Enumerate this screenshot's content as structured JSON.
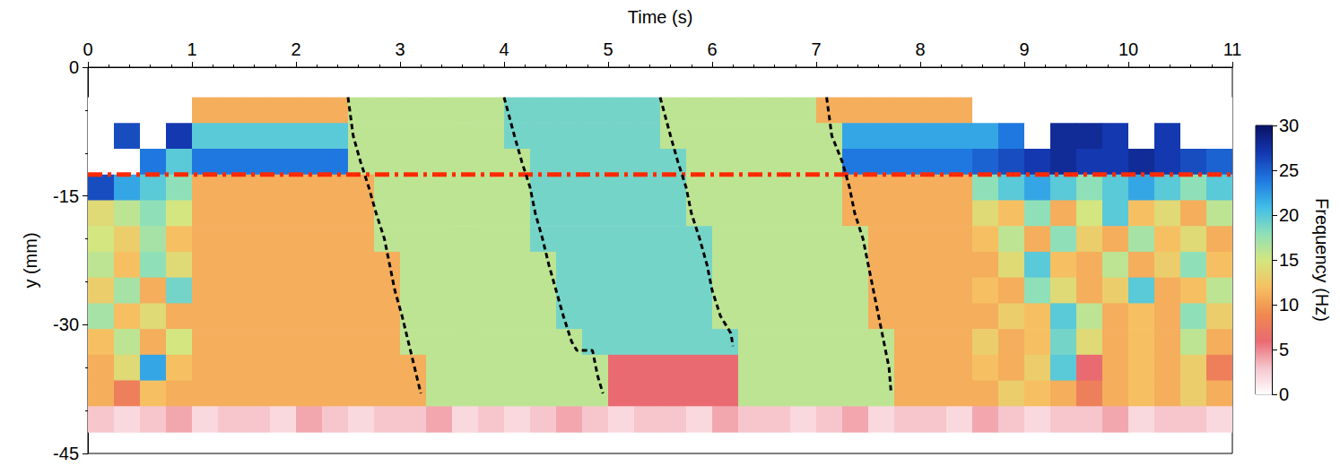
{
  "chart_data": {
    "type": "heatmap",
    "x_label": "Time (s)",
    "y_label": "y (mm)",
    "xlim": [
      0,
      11
    ],
    "xticks": [
      0,
      1,
      2,
      3,
      4,
      5,
      6,
      7,
      8,
      9,
      10,
      11
    ],
    "ylim": [
      -45,
      0
    ],
    "yticks": [
      -45,
      -30,
      -15,
      0
    ],
    "cells": {
      "x": [
        0.125,
        0.375,
        0.625,
        0.875,
        1.125,
        1.375,
        1.625,
        1.875,
        2.125,
        2.375,
        2.625,
        2.875,
        3.125,
        3.375,
        3.625,
        3.875,
        4.125,
        4.375,
        4.625,
        4.875,
        5.125,
        5.375,
        5.625,
        5.875,
        6.125,
        6.375,
        6.625,
        6.875,
        7.125,
        7.375,
        7.625,
        7.875,
        8.125,
        8.375,
        8.625,
        8.875,
        9.125,
        9.375,
        9.625,
        9.875,
        10.125,
        10.375,
        10.625,
        10.875
      ],
      "y": [
        -5,
        -8,
        -11,
        -14,
        -17,
        -20,
        -23,
        -26,
        -29,
        -32,
        -35,
        -38,
        -41
      ],
      "z": [
        [
          0,
          0,
          0,
          0,
          11,
          11,
          11,
          11,
          11,
          11,
          16,
          16,
          16,
          16,
          16,
          16,
          19,
          19,
          19,
          19,
          19,
          19,
          16,
          16,
          16,
          16,
          16,
          16,
          11,
          11,
          11,
          11,
          11,
          11,
          0,
          0,
          0,
          0,
          0,
          0,
          0,
          0,
          0,
          0
        ],
        [
          0,
          26,
          0,
          27,
          20,
          20,
          20,
          20,
          20,
          20,
          16,
          16,
          16,
          16,
          16,
          16,
          19,
          19,
          19,
          19,
          19,
          19,
          16,
          16,
          16,
          16,
          16,
          16,
          16,
          22,
          22,
          22,
          22,
          22,
          22,
          24,
          0,
          28,
          28,
          27,
          0,
          27,
          0,
          0
        ],
        [
          0,
          0,
          24,
          20,
          24,
          24,
          24,
          24,
          24,
          24,
          16,
          16,
          16,
          16,
          16,
          16,
          16,
          19,
          19,
          19,
          19,
          19,
          19,
          16,
          16,
          16,
          16,
          16,
          16,
          24,
          24,
          24,
          24,
          24,
          25,
          26,
          27,
          28,
          27,
          27,
          28,
          27,
          26,
          25
        ],
        [
          26,
          22,
          20,
          18,
          11,
          11,
          11,
          11,
          11,
          11,
          11,
          16,
          16,
          16,
          16,
          16,
          16,
          19,
          19,
          19,
          19,
          19,
          19,
          16,
          16,
          16,
          16,
          16,
          16,
          11,
          11,
          11,
          11,
          11,
          18,
          20,
          22,
          20,
          18,
          20,
          22,
          20,
          18,
          20
        ],
        [
          14,
          16,
          18,
          15,
          11,
          11,
          11,
          11,
          11,
          11,
          11,
          16,
          16,
          16,
          16,
          16,
          16,
          19,
          19,
          19,
          19,
          19,
          19,
          16,
          16,
          16,
          16,
          16,
          16,
          11,
          11,
          11,
          11,
          11,
          14,
          12,
          18,
          11,
          15,
          20,
          12,
          14,
          11,
          16
        ],
        [
          15,
          13,
          17,
          12,
          11,
          11,
          11,
          11,
          11,
          11,
          11,
          16,
          16,
          16,
          16,
          16,
          16,
          19,
          19,
          19,
          19,
          19,
          19,
          19,
          16,
          16,
          16,
          16,
          16,
          16,
          11,
          11,
          11,
          11,
          12,
          16,
          11,
          18,
          13,
          11,
          17,
          12,
          14,
          11
        ],
        [
          16,
          12,
          18,
          14,
          11,
          11,
          11,
          11,
          11,
          11,
          11,
          11,
          16,
          16,
          16,
          16,
          16,
          16,
          19,
          19,
          19,
          19,
          19,
          19,
          16,
          16,
          16,
          16,
          16,
          16,
          11,
          11,
          11,
          11,
          11,
          14,
          20,
          12,
          11,
          16,
          11,
          13,
          18,
          12
        ],
        [
          13,
          17,
          11,
          19,
          11,
          11,
          11,
          11,
          11,
          11,
          11,
          11,
          16,
          16,
          16,
          16,
          16,
          16,
          19,
          19,
          19,
          19,
          19,
          19,
          16,
          16,
          16,
          16,
          16,
          16,
          11,
          11,
          11,
          11,
          12,
          11,
          18,
          14,
          11,
          13,
          20,
          11,
          12,
          16
        ],
        [
          17,
          12,
          14,
          11,
          11,
          11,
          11,
          11,
          11,
          11,
          11,
          11,
          16,
          16,
          16,
          16,
          16,
          16,
          19,
          19,
          19,
          19,
          19,
          19,
          16,
          16,
          16,
          16,
          16,
          16,
          11,
          11,
          11,
          11,
          11,
          13,
          12,
          20,
          16,
          11,
          12,
          11,
          18,
          13
        ],
        [
          12,
          16,
          11,
          15,
          11,
          11,
          11,
          11,
          11,
          11,
          11,
          11,
          16,
          16,
          16,
          16,
          16,
          16,
          16,
          19,
          19,
          19,
          19,
          19,
          19,
          16,
          16,
          16,
          16,
          16,
          16,
          11,
          11,
          11,
          13,
          11,
          12,
          19,
          14,
          11,
          12,
          11,
          16,
          11
        ],
        [
          11,
          14,
          22,
          12,
          11,
          11,
          11,
          11,
          11,
          11,
          11,
          11,
          11,
          16,
          16,
          16,
          16,
          16,
          16,
          16,
          6,
          6,
          6,
          6,
          6,
          16,
          16,
          16,
          16,
          16,
          16,
          11,
          11,
          11,
          12,
          11,
          13,
          20,
          6,
          11,
          12,
          11,
          13,
          8
        ],
        [
          11,
          8,
          12,
          11,
          11,
          11,
          11,
          11,
          11,
          11,
          11,
          11,
          11,
          16,
          16,
          16,
          16,
          16,
          16,
          16,
          6,
          6,
          6,
          6,
          6,
          16,
          16,
          16,
          16,
          16,
          16,
          11,
          11,
          11,
          11,
          13,
          12,
          11,
          8,
          11,
          12,
          11,
          13,
          11
        ],
        [
          3,
          2,
          3,
          4,
          2,
          3,
          3,
          2,
          4,
          3,
          2,
          3,
          3,
          4,
          2,
          3,
          2,
          3,
          4,
          3,
          2,
          3,
          3,
          2,
          4,
          3,
          3,
          2,
          3,
          4,
          2,
          3,
          3,
          2,
          4,
          3,
          2,
          3,
          3,
          4,
          2,
          3,
          3,
          2
        ]
      ]
    },
    "colorbar": {
      "label": "Frequency (Hz)",
      "range": [
        0,
        30
      ],
      "ticks": [
        0,
        5,
        10,
        15,
        20,
        25,
        30
      ]
    },
    "reference_line": {
      "y": -12.5,
      "x": [
        0,
        11
      ],
      "color": "#ff2a00",
      "line_style": "dashdot"
    },
    "fronts": [
      {
        "x": [
          2.5,
          2.55,
          2.62,
          2.7,
          2.77,
          2.85,
          2.9,
          2.95,
          3.02,
          3.08,
          3.14,
          3.2
        ],
        "y": [
          -3.5,
          -8,
          -11,
          -14,
          -17,
          -20,
          -23,
          -26,
          -29,
          -32,
          -35,
          -38
        ],
        "color": "#000000",
        "line_style": "dashed"
      },
      {
        "x": [
          4.0,
          4.1,
          4.17,
          4.25,
          4.3,
          4.37,
          4.43,
          4.5,
          4.57,
          4.65,
          4.7,
          4.85,
          4.9,
          4.95
        ],
        "y": [
          -3.5,
          -8,
          -11,
          -14,
          -17,
          -20,
          -23,
          -26,
          -29,
          -32,
          -33,
          -33,
          -36,
          -38
        ],
        "color": "#000000",
        "line_style": "dashed"
      },
      {
        "x": [
          5.5,
          5.6,
          5.67,
          5.75,
          5.8,
          5.88,
          5.95,
          6.0,
          6.08,
          6.18,
          6.2
        ],
        "y": [
          -3.5,
          -8,
          -11,
          -14,
          -17,
          -20,
          -23,
          -26,
          -29,
          -31,
          -32.5
        ],
        "color": "#000000",
        "line_style": "dashed"
      },
      {
        "x": [
          7.1,
          7.15,
          7.25,
          7.32,
          7.37,
          7.45,
          7.5,
          7.55,
          7.6,
          7.65,
          7.7,
          7.72
        ],
        "y": [
          -3.5,
          -8,
          -11,
          -14,
          -17,
          -20,
          -23,
          -26,
          -29,
          -32,
          -35,
          -38
        ],
        "color": "#000000",
        "line_style": "dashed"
      }
    ]
  }
}
